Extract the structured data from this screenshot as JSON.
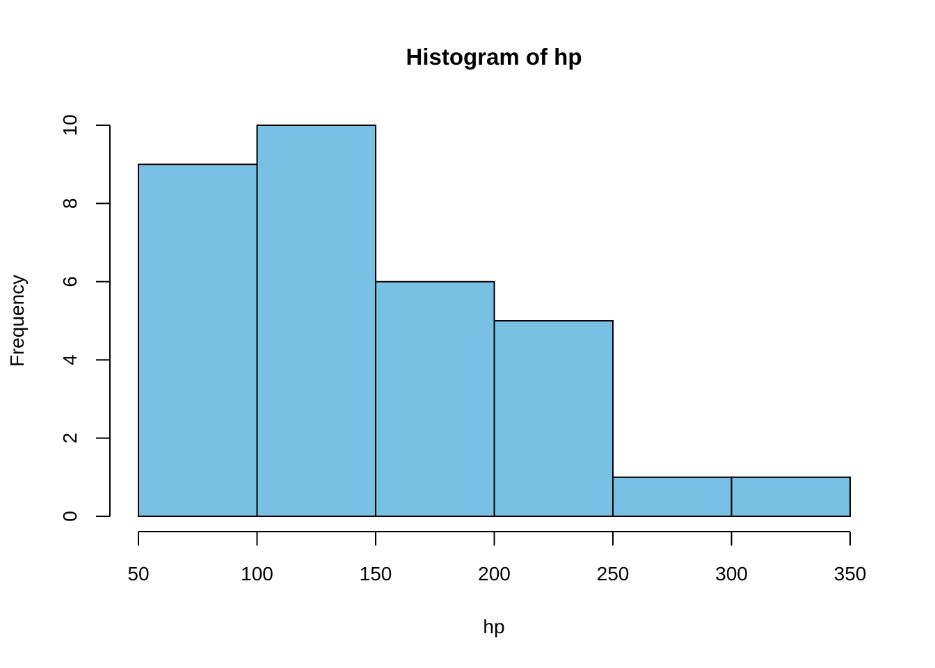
{
  "chart_data": {
    "type": "bar",
    "title": "Histogram of  hp",
    "xlabel": "hp",
    "ylabel": "Frequency",
    "bins": [
      {
        "start": 50,
        "end": 100,
        "count": 9
      },
      {
        "start": 100,
        "end": 150,
        "count": 10
      },
      {
        "start": 150,
        "end": 200,
        "count": 6
      },
      {
        "start": 200,
        "end": 250,
        "count": 5
      },
      {
        "start": 250,
        "end": 300,
        "count": 1
      },
      {
        "start": 300,
        "end": 350,
        "count": 1
      }
    ],
    "xlim": [
      50,
      350
    ],
    "ylim": [
      0,
      10
    ],
    "x_ticks": [
      "50",
      "100",
      "150",
      "200",
      "250",
      "300",
      "350"
    ],
    "y_ticks": [
      "0",
      "2",
      "4",
      "6",
      "8",
      "10"
    ],
    "grid": false,
    "legend": "none",
    "colors": {
      "bar_fill": "#78C1E5",
      "bar_stroke": "#000000",
      "text": "#000000",
      "axis": "#000000"
    }
  }
}
